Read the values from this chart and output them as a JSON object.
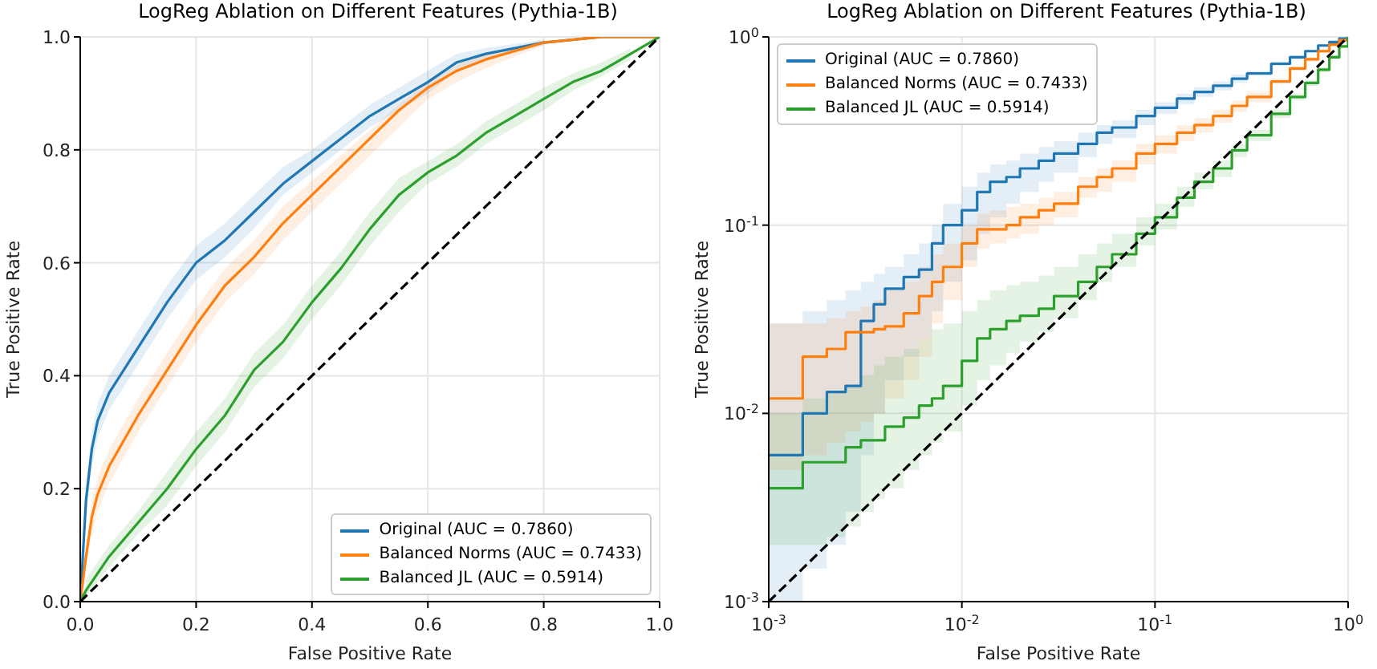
{
  "chart_data": [
    {
      "type": "line",
      "title": "LogReg Ablation on Different Features (Pythia-1B)",
      "xlabel": "False Positive Rate",
      "ylabel": "True Positive Rate",
      "xlim": [
        0,
        1
      ],
      "ylim": [
        0,
        1
      ],
      "xticks": [
        {
          "value": 0,
          "label": "0.0"
        },
        0.2,
        0.4,
        0.6,
        0.8,
        {
          "value": 1,
          "label": "1.0"
        }
      ],
      "yticks": [
        {
          "value": 0,
          "label": "0.0"
        },
        0.2,
        0.4,
        0.6,
        0.8,
        {
          "value": 1,
          "label": "1.0"
        }
      ],
      "grid": true,
      "legend": "bottom right",
      "series": [
        {
          "name": "Original (AUC = 0.7860)",
          "color": "#1f77b4",
          "x": [
            0,
            0.01,
            0.02,
            0.03,
            0.05,
            0.1,
            0.15,
            0.2,
            0.25,
            0.3,
            0.35,
            0.4,
            0.45,
            0.5,
            0.55,
            0.6,
            0.65,
            0.7,
            0.8,
            0.9,
            1
          ],
          "values": [
            0,
            0.18,
            0.27,
            0.32,
            0.37,
            0.45,
            0.53,
            0.6,
            0.64,
            0.69,
            0.74,
            0.78,
            0.82,
            0.86,
            0.89,
            0.92,
            0.955,
            0.97,
            0.99,
            1,
            1
          ],
          "lower": [
            null,
            0.15,
            0.24,
            0.29,
            0.34,
            0.42,
            0.5,
            0.57,
            0.61,
            0.66,
            0.72,
            0.76,
            0.8,
            0.84,
            0.87,
            0.9,
            0.94,
            0.96,
            0.985,
            null,
            null
          ],
          "upper": [
            null,
            0.21,
            0.3,
            0.35,
            0.4,
            0.48,
            0.56,
            0.63,
            0.67,
            0.72,
            0.77,
            0.8,
            0.84,
            0.88,
            0.91,
            0.94,
            0.97,
            0.98,
            0.995,
            null,
            null
          ]
        },
        {
          "name": "Balanced Norms (AUC = 0.7433)",
          "color": "#ff7f0e",
          "x": [
            0,
            0.01,
            0.02,
            0.03,
            0.05,
            0.1,
            0.15,
            0.2,
            0.25,
            0.3,
            0.35,
            0.4,
            0.45,
            0.5,
            0.55,
            0.6,
            0.65,
            0.7,
            0.8,
            0.9,
            1
          ],
          "values": [
            0,
            0.08,
            0.15,
            0.19,
            0.24,
            0.33,
            0.41,
            0.49,
            0.56,
            0.61,
            0.67,
            0.72,
            0.77,
            0.82,
            0.87,
            0.91,
            0.94,
            0.96,
            0.99,
            1,
            1
          ],
          "lower": [
            null,
            0.06,
            0.12,
            0.16,
            0.21,
            0.3,
            0.38,
            0.46,
            0.53,
            0.58,
            0.64,
            0.69,
            0.74,
            0.79,
            0.84,
            0.89,
            0.92,
            0.945,
            0.985,
            null,
            null
          ],
          "upper": [
            null,
            0.1,
            0.18,
            0.22,
            0.27,
            0.36,
            0.44,
            0.52,
            0.59,
            0.64,
            0.7,
            0.745,
            0.79,
            0.835,
            0.88,
            0.92,
            0.95,
            0.97,
            0.995,
            null,
            null
          ]
        },
        {
          "name": "Balanced JL (AUC = 0.5914)",
          "color": "#2ca02c",
          "x": [
            0,
            0.01,
            0.05,
            0.1,
            0.15,
            0.2,
            0.25,
            0.3,
            0.35,
            0.4,
            0.45,
            0.5,
            0.55,
            0.6,
            0.65,
            0.7,
            0.75,
            0.8,
            0.85,
            0.9,
            0.95,
            1
          ],
          "values": [
            0,
            0.02,
            0.08,
            0.14,
            0.2,
            0.27,
            0.33,
            0.41,
            0.46,
            0.53,
            0.59,
            0.66,
            0.72,
            0.76,
            0.79,
            0.83,
            0.86,
            0.89,
            0.92,
            0.94,
            0.97,
            1
          ],
          "lower": [
            null,
            0.01,
            0.06,
            0.12,
            0.17,
            0.24,
            0.3,
            0.38,
            0.43,
            0.5,
            0.56,
            0.63,
            0.69,
            0.74,
            0.77,
            0.81,
            0.84,
            0.87,
            0.905,
            0.93,
            0.96,
            null
          ],
          "upper": [
            null,
            0.04,
            0.1,
            0.16,
            0.23,
            0.3,
            0.36,
            0.44,
            0.49,
            0.56,
            0.62,
            0.69,
            0.75,
            0.78,
            0.81,
            0.85,
            0.88,
            0.91,
            0.935,
            0.955,
            0.98,
            null
          ]
        },
        {
          "type": "line",
          "color": "#000000",
          "line_style": "dashed",
          "x": [
            0,
            1
          ],
          "values": [
            0,
            1
          ]
        }
      ]
    },
    {
      "type": "step",
      "title": "LogReg Ablation on Different Features (Pythia-1B)",
      "xlabel": "False Positive Rate",
      "ylabel": "True Positive Rate",
      "log": "xy",
      "xlim": [
        0.001,
        1
      ],
      "ylim": [
        0.001,
        1
      ],
      "xticks": [
        {
          "value": 0.001,
          "label": "10$^{-3}$"
        },
        {
          "value": 0.01,
          "label": "10$^{-2}$"
        },
        {
          "value": 0.1,
          "label": "10$^{-1}$"
        },
        {
          "value": 1,
          "label": "10$^{0}$"
        }
      ],
      "yticks": [
        {
          "value": 0.001,
          "label": "10$^{-3}$"
        },
        {
          "value": 0.01,
          "label": "10$^{-2}$"
        },
        {
          "value": 0.1,
          "label": "10$^{-1}$"
        },
        {
          "value": 1,
          "label": "10$^{0}$"
        }
      ],
      "grid": true,
      "legend": "top left",
      "series": [
        {
          "name": "Original (AUC = 0.7860)",
          "color": "#1f77b4",
          "x": [
            0.001,
            0.0015,
            0.002,
            0.0025,
            0.003,
            0.0035,
            0.004,
            0.005,
            0.006,
            0.007,
            0.008,
            0.01,
            0.012,
            0.014,
            0.017,
            0.02,
            0.025,
            0.03,
            0.04,
            0.05,
            0.06,
            0.08,
            0.1,
            0.13,
            0.16,
            0.2,
            0.25,
            0.3,
            0.4,
            0.5,
            0.6,
            0.7,
            0.8,
            0.9,
            1
          ],
          "values": [
            0.006,
            0.01,
            0.013,
            0.014,
            0.031,
            0.038,
            0.046,
            0.053,
            0.058,
            0.08,
            0.1,
            0.12,
            0.15,
            0.17,
            0.18,
            0.2,
            0.22,
            0.24,
            0.27,
            0.31,
            0.33,
            0.38,
            0.42,
            0.47,
            0.51,
            0.55,
            0.6,
            0.64,
            0.72,
            0.78,
            0.84,
            0.9,
            0.94,
            0.98,
            1
          ],
          "lower": [
            0.001,
            0.0015,
            0.002,
            0.003,
            0.006,
            0.01,
            0.015,
            0.02,
            0.025,
            0.035,
            0.05,
            0.065,
            0.09,
            0.11,
            0.13,
            0.15,
            0.17,
            0.19,
            0.23,
            0.27,
            0.29,
            0.34,
            0.39,
            0.44,
            0.48,
            0.52,
            0.57,
            0.62,
            0.7,
            0.76,
            0.83,
            0.89,
            0.93,
            0.97,
            null
          ],
          "upper": [
            0.03,
            0.035,
            0.04,
            0.045,
            0.05,
            0.055,
            0.06,
            0.07,
            0.08,
            0.1,
            0.13,
            0.16,
            0.19,
            0.21,
            0.22,
            0.24,
            0.26,
            0.28,
            0.31,
            0.34,
            0.36,
            0.41,
            0.45,
            0.5,
            0.54,
            0.58,
            0.63,
            0.66,
            0.74,
            0.8,
            0.85,
            0.91,
            0.95,
            0.99,
            null
          ]
        },
        {
          "name": "Balanced Norms (AUC = 0.7433)",
          "color": "#ff7f0e",
          "x": [
            0.001,
            0.0015,
            0.002,
            0.0025,
            0.003,
            0.0035,
            0.004,
            0.005,
            0.006,
            0.007,
            0.008,
            0.01,
            0.012,
            0.014,
            0.017,
            0.02,
            0.025,
            0.03,
            0.04,
            0.05,
            0.06,
            0.08,
            0.1,
            0.13,
            0.16,
            0.2,
            0.25,
            0.3,
            0.4,
            0.5,
            0.6,
            0.7,
            0.8,
            0.9,
            1
          ],
          "values": [
            0.012,
            0.02,
            0.022,
            0.027,
            0.027,
            0.028,
            0.029,
            0.034,
            0.042,
            0.05,
            0.06,
            0.08,
            0.095,
            0.095,
            0.1,
            0.11,
            0.12,
            0.13,
            0.16,
            0.18,
            0.2,
            0.24,
            0.27,
            0.31,
            0.34,
            0.38,
            0.43,
            0.48,
            0.58,
            0.68,
            0.76,
            0.84,
            0.91,
            0.96,
            1
          ],
          "lower": [
            0.005,
            0.006,
            0.007,
            0.008,
            0.009,
            0.01,
            0.012,
            0.015,
            0.02,
            0.03,
            0.04,
            0.06,
            0.075,
            0.08,
            0.085,
            0.09,
            0.1,
            0.11,
            0.14,
            0.15,
            0.17,
            0.21,
            0.24,
            0.28,
            0.31,
            0.35,
            0.4,
            0.45,
            0.56,
            0.66,
            0.74,
            0.82,
            0.9,
            0.95,
            null
          ],
          "upper": [
            0.03,
            0.03,
            0.032,
            0.035,
            0.037,
            0.04,
            0.045,
            0.05,
            0.06,
            0.07,
            0.08,
            0.1,
            0.115,
            0.12,
            0.125,
            0.13,
            0.14,
            0.15,
            0.18,
            0.2,
            0.22,
            0.27,
            0.3,
            0.34,
            0.37,
            0.41,
            0.46,
            0.51,
            0.6,
            0.7,
            0.78,
            0.86,
            0.92,
            0.97,
            null
          ]
        },
        {
          "name": "Balanced JL (AUC = 0.5914)",
          "color": "#2ca02c",
          "x": [
            0.001,
            0.0015,
            0.002,
            0.0025,
            0.003,
            0.0035,
            0.004,
            0.005,
            0.006,
            0.007,
            0.008,
            0.01,
            0.012,
            0.014,
            0.017,
            0.02,
            0.025,
            0.03,
            0.04,
            0.05,
            0.06,
            0.08,
            0.1,
            0.13,
            0.16,
            0.2,
            0.25,
            0.3,
            0.4,
            0.5,
            0.6,
            0.7,
            0.8,
            0.9,
            1
          ],
          "values": [
            0.004,
            0.0055,
            0.0055,
            0.0066,
            0.0072,
            0.0072,
            0.0085,
            0.0095,
            0.011,
            0.012,
            0.014,
            0.019,
            0.025,
            0.028,
            0.031,
            0.033,
            0.036,
            0.042,
            0.05,
            0.06,
            0.07,
            0.09,
            0.11,
            0.14,
            0.17,
            0.2,
            0.25,
            0.3,
            0.39,
            0.48,
            0.57,
            0.67,
            0.78,
            0.89,
            1
          ],
          "lower": [
            0.002,
            0.002,
            0.0022,
            0.0025,
            0.003,
            0.0035,
            0.004,
            0.005,
            0.006,
            0.007,
            0.008,
            0.011,
            0.015,
            0.018,
            0.021,
            0.024,
            0.027,
            0.032,
            0.04,
            0.05,
            0.06,
            0.078,
            0.095,
            0.125,
            0.155,
            0.18,
            0.23,
            0.28,
            0.37,
            0.46,
            0.55,
            0.65,
            0.76,
            0.88,
            null
          ],
          "upper": [
            0.01,
            0.012,
            0.013,
            0.014,
            0.016,
            0.018,
            0.02,
            0.022,
            0.025,
            0.028,
            0.03,
            0.035,
            0.04,
            0.045,
            0.048,
            0.05,
            0.054,
            0.06,
            0.07,
            0.08,
            0.09,
            0.11,
            0.13,
            0.16,
            0.19,
            0.22,
            0.27,
            0.32,
            0.41,
            0.5,
            0.59,
            0.69,
            0.8,
            0.9,
            null
          ]
        },
        {
          "type": "line",
          "color": "#000000",
          "line_style": "dashed",
          "x": [
            0.001,
            1
          ],
          "values": [
            0.001,
            1
          ]
        }
      ]
    }
  ]
}
